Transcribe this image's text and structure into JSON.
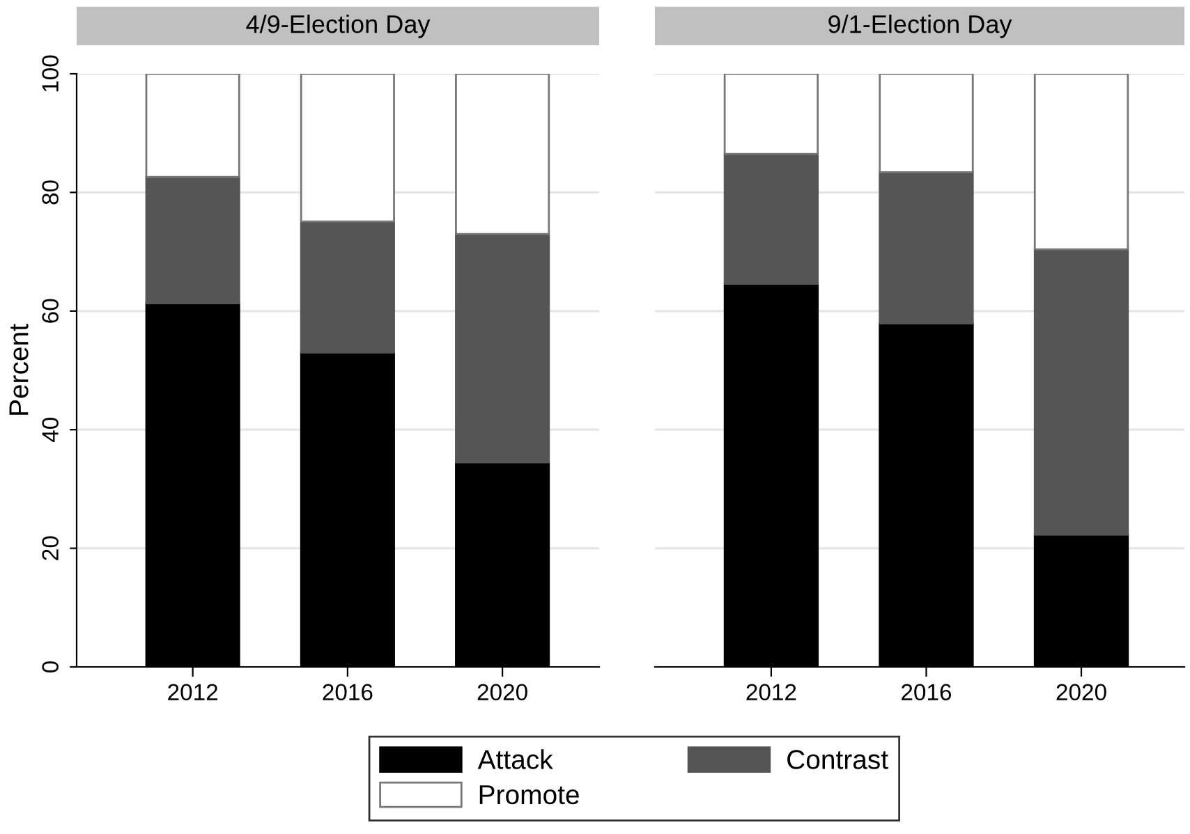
{
  "chart_data": [
    {
      "type": "bar",
      "title": "4/9-Election Day",
      "ylabel": "Percent",
      "categories": [
        "2012",
        "2016",
        "2020"
      ],
      "stacked": true,
      "ylim": [
        0,
        100
      ],
      "yticks": [
        0,
        20,
        40,
        60,
        80,
        100
      ],
      "grid": "y",
      "legend": "bottom",
      "series": [
        {
          "name": "Attack",
          "color": "#000000",
          "values": [
            61.3,
            53.0,
            34.5
          ]
        },
        {
          "name": "Contrast",
          "color": "#555555",
          "values": [
            21.3,
            22.1,
            38.5
          ]
        },
        {
          "name": "Promote",
          "color": "#ffffff",
          "values": [
            17.4,
            24.9,
            27.0
          ]
        }
      ]
    },
    {
      "type": "bar",
      "title": "9/1-Election Day",
      "categories": [
        "2012",
        "2016",
        "2020"
      ],
      "stacked": true,
      "ylim": [
        0,
        100
      ],
      "yticks": [
        0,
        20,
        40,
        60,
        80,
        100
      ],
      "grid": "y",
      "tick_labels": "x",
      "series": [
        {
          "color": "#000000",
          "values": [
            64.6,
            57.9,
            22.3
          ]
        },
        {
          "color": "#555555",
          "values": [
            21.9,
            25.5,
            48.1
          ]
        },
        {
          "color": "#ffffff",
          "values": [
            13.5,
            16.6,
            29.6
          ]
        }
      ]
    }
  ]
}
